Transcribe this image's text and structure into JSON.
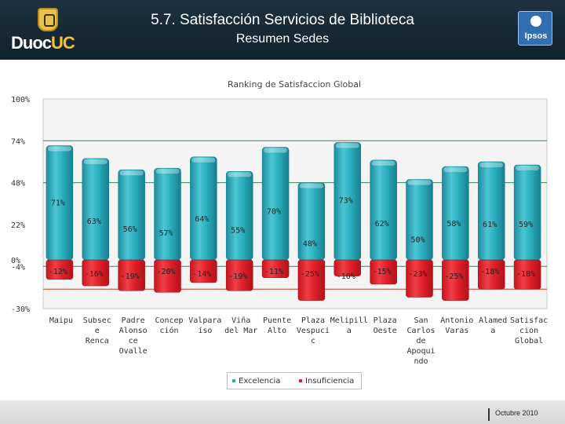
{
  "header": {
    "title": "5.7. Satisfacción Servicios de Biblioteca",
    "subtitle": "Resumen Sedes",
    "logo_left": {
      "main": "Duoc",
      "accent": "UC"
    },
    "logo_right": "Ipsos",
    "colors": {
      "background": "#16293a",
      "logo_accent": "#f2c230",
      "ipsos_blue": "#2f6fb2"
    }
  },
  "footer": {
    "date": "Octubre 2010"
  },
  "chart_data": {
    "type": "bar",
    "title": "Ranking de Satisfaccion Global",
    "xlabel": "",
    "ylabel": "",
    "ylim": [
      -30,
      100
    ],
    "yticks": [
      {
        "value": 100,
        "label": "100%"
      },
      {
        "value": 74,
        "label": "74%"
      },
      {
        "value": 48,
        "label": "48%"
      },
      {
        "value": 22,
        "label": "22%"
      },
      {
        "value": 0,
        "label": "0%"
      },
      {
        "value": -4,
        "label": "-4%"
      },
      {
        "value": -30,
        "label": "-30%"
      }
    ],
    "reference_lines": [
      74,
      48,
      -4,
      -18
    ],
    "grid": true,
    "legend_position": "bottom-center",
    "categories": [
      [
        "Maipu"
      ],
      [
        "Subsec",
        "e",
        "Renca"
      ],
      [
        "Padre",
        "Alonso",
        "ce",
        "Ovalle"
      ],
      [
        "Concep",
        "ción"
      ],
      [
        "Valpara",
        "íso"
      ],
      [
        "Viña",
        "del Mar"
      ],
      [
        "Puente",
        "Alto"
      ],
      [
        "Plaza",
        "Vespuci",
        "c"
      ],
      [
        "Melipill",
        "a"
      ],
      [
        "Plaza",
        "Oeste"
      ],
      [
        "San",
        "Carlos",
        "de",
        "Apoqui",
        "ndo"
      ],
      [
        "Antonio",
        "Varas"
      ],
      [
        "Alamed",
        "a"
      ],
      [
        "Satisfac",
        "cion",
        "Global"
      ]
    ],
    "series": [
      {
        "name": "Excelencia",
        "color": "#29a8b8",
        "values": [
          71,
          63,
          56,
          57,
          64,
          55,
          70,
          48,
          73,
          62,
          50,
          58,
          61,
          59
        ],
        "labels": [
          "71%",
          "63%",
          "56%",
          "57%",
          "64%",
          "55%",
          "70%",
          "48%",
          "73%",
          "62%",
          "50%",
          "58%",
          "61%",
          "59%"
        ]
      },
      {
        "name": "Insuficiencia",
        "color": "#e0202a",
        "values": [
          -12,
          -16,
          -19,
          -20,
          -14,
          -19,
          -11,
          -25,
          -10,
          -15,
          -23,
          -25,
          -18,
          -18
        ],
        "labels": [
          "-12%",
          "-16%",
          "-19%",
          "-20%",
          "-14%",
          "-19%",
          "-11%",
          "-25%",
          "-10%",
          "-15%",
          "-23%",
          "-25%",
          "-18%",
          "-18%"
        ]
      }
    ]
  }
}
